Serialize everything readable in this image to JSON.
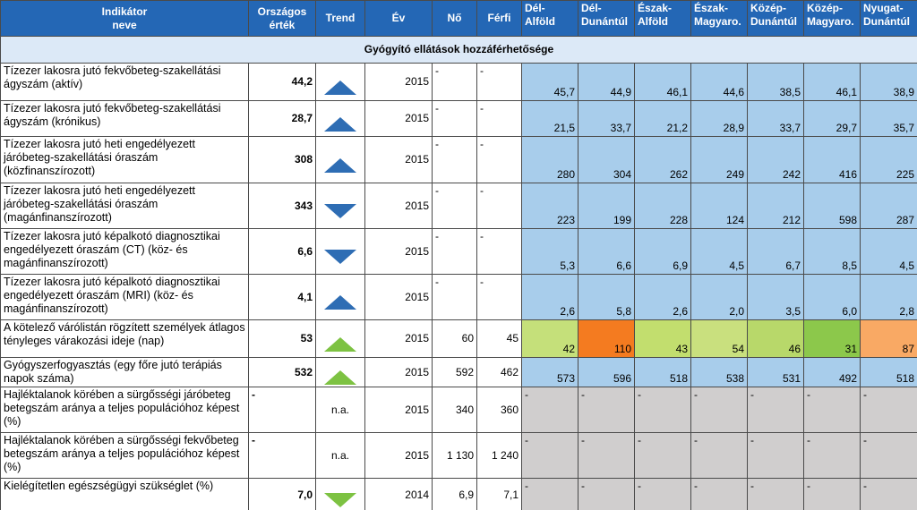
{
  "header": {
    "columns": [
      "Indikátor neve",
      "Országos érték",
      "Trend",
      "Év",
      "Nő",
      "Férfi",
      "Dél-Alföld",
      "Dél-Dunántúl",
      "Észak-Alföld",
      "Észak-Magyaro.",
      "Közép-Dunántúl",
      "Közép-Magyaro.",
      "Nyugat-Dunántúl"
    ]
  },
  "section": {
    "title": "Gyógyító ellátások hozzáférhetősége"
  },
  "table": {
    "rows": [
      {
        "indicator": "Tízezer lakosra jutó fekvőbeteg-szakellátási ágyszám (aktív)",
        "national": "44,2",
        "year": "2015",
        "female": "-",
        "male": "-",
        "regions": [
          "45,7",
          "44,9",
          "46,1",
          "44,6",
          "38,5",
          "46,1",
          "38,9"
        ]
      },
      {
        "indicator": "Tízezer lakosra jutó fekvőbeteg-szakellátási ágyszám (krónikus)",
        "national": "28,7",
        "year": "2015",
        "female": "-",
        "male": "-",
        "regions": [
          "21,5",
          "33,7",
          "21,2",
          "28,9",
          "33,7",
          "29,7",
          "35,7"
        ]
      },
      {
        "indicator": "Tízezer lakosra jutó heti engedélyezett járóbeteg-szakellátási óraszám (közfinanszírozott)",
        "national": "308",
        "year": "2015",
        "female": "-",
        "male": "-",
        "regions": [
          "280",
          "304",
          "262",
          "249",
          "242",
          "416",
          "225"
        ]
      },
      {
        "indicator": "Tízezer lakosra jutó heti engedélyezett járóbeteg-szakellátási óraszám (magánfinanszírozott)",
        "national": "343",
        "year": "2015",
        "female": "-",
        "male": "-",
        "regions": [
          "223",
          "199",
          "228",
          "124",
          "212",
          "598",
          "287"
        ]
      },
      {
        "indicator": "Tízezer lakosra jutó képalkotó diagnosztikai engedélyezett óraszám (CT) (köz- és magánfinanszírozott)",
        "national": "6,6",
        "year": "2015",
        "female": "-",
        "male": "-",
        "regions": [
          "5,3",
          "6,6",
          "6,9",
          "4,5",
          "6,7",
          "8,5",
          "4,5"
        ]
      },
      {
        "indicator": "Tízezer lakosra jutó képalkotó diagnosztikai engedélyezett óraszám (MRI) (köz- és magánfinanszírozott)",
        "national": "4,1",
        "year": "2015",
        "female": "-",
        "male": "-",
        "regions": [
          "2,6",
          "5,8",
          "2,6",
          "2,0",
          "3,5",
          "6,0",
          "2,8"
        ]
      },
      {
        "indicator": "A kötelező várólistán rögzített személyek átlagos tényleges várakozási ideje (nap)",
        "national": "53",
        "year": "2015",
        "female": "60",
        "male": "45",
        "regions": [
          "42",
          "110",
          "43",
          "54",
          "46",
          "31",
          "87"
        ]
      },
      {
        "indicator": "Gyógyszerfogyasztás (egy főre jutó terápiás napok száma)",
        "national": "532",
        "year": "2015",
        "female": "592",
        "male": "462",
        "regions": [
          "573",
          "596",
          "518",
          "538",
          "531",
          "492",
          "518"
        ]
      },
      {
        "indicator": "Hajléktalanok körében a sürgősségi járóbeteg betegszám aránya a teljes populációhoz képest (%)",
        "national": "-",
        "trend": "n.a.",
        "year": "2015",
        "female": "340",
        "male": "360",
        "regions": [
          "-",
          "-",
          "-",
          "-",
          "-",
          "-",
          "-"
        ]
      },
      {
        "indicator": "Hajléktalanok körében a sürgősségi fekvőbeteg betegszám aránya a teljes populációhoz képest (%)",
        "national": "-",
        "trend": "n.a.",
        "year": "2015",
        "female": "1 130",
        "male": "1 240",
        "regions": [
          "-",
          "-",
          "-",
          "-",
          "-",
          "-",
          "-"
        ]
      },
      {
        "indicator": "Kielégítetlen egészségügyi szükséglet (%)",
        "national": "7,0",
        "year": "2014",
        "female": "6,9",
        "male": "7,1",
        "regions": [
          "-",
          "-",
          "-",
          "-",
          "-",
          "-",
          "-"
        ]
      }
    ]
  }
}
